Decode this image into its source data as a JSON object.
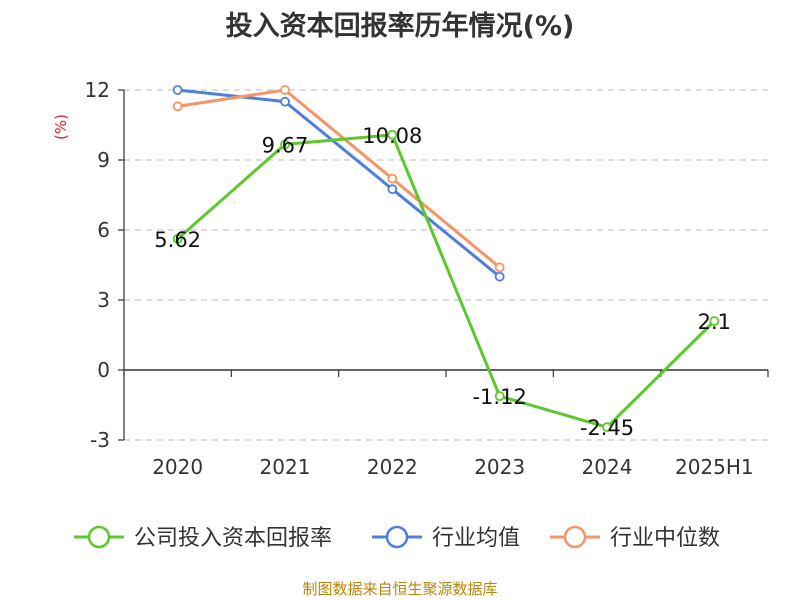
{
  "chart_data": {
    "type": "line",
    "title": "投入资本回报率历年情况(%)",
    "ylabel": "(%)",
    "xlabel": "",
    "categories": [
      "2020",
      "2021",
      "2022",
      "2023",
      "2024",
      "2025H1"
    ],
    "ylim": [
      -3,
      12
    ],
    "yticks": [
      -3,
      0,
      3,
      6,
      9,
      12
    ],
    "grid": "horizontal dashed",
    "legend_position": "bottom",
    "series": [
      {
        "name": "公司投入资本回报率",
        "color": "#5cc82b",
        "values": [
          5.62,
          9.67,
          10.08,
          -1.12,
          -2.45,
          2.1
        ],
        "labels": [
          "5.62",
          "9.67",
          "10.08",
          "-1.12",
          "-2.45",
          "2.1"
        ]
      },
      {
        "name": "行业均值",
        "color": "#4e7fdd",
        "values": [
          12.0,
          11.5,
          7.75,
          4.0,
          null,
          null
        ]
      },
      {
        "name": "行业中位数",
        "color": "#f59566",
        "values": [
          11.3,
          12.0,
          8.2,
          4.4,
          null,
          null
        ]
      }
    ]
  },
  "source_note": "制图数据来自恒生聚源数据库"
}
